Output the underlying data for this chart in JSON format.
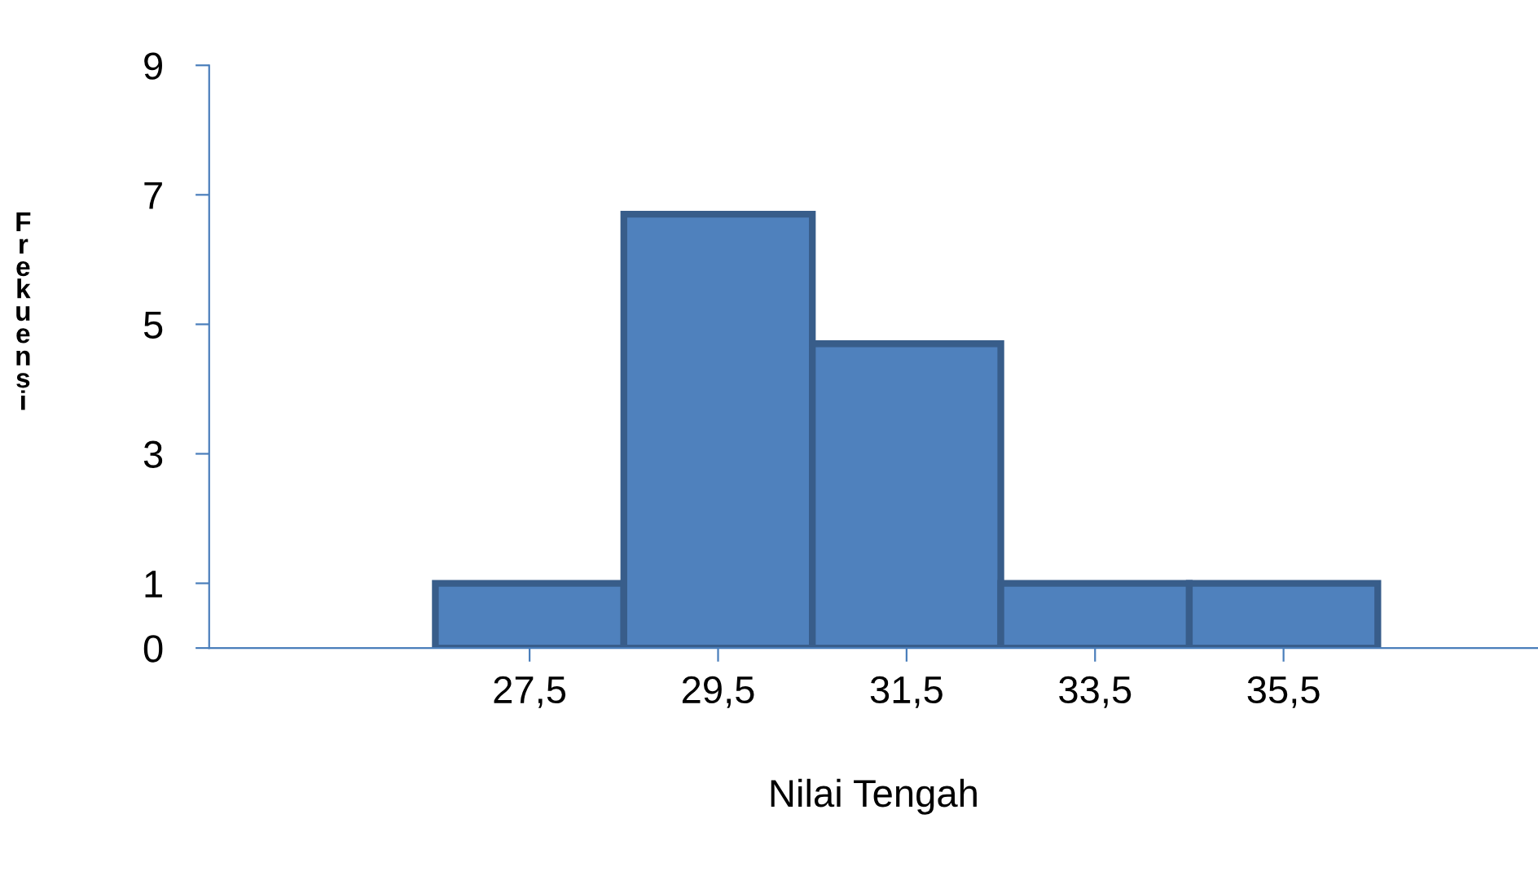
{
  "chart_data": {
    "type": "histogram",
    "xlabel": "Nilai Tengah",
    "ylabel": "Frekuensi",
    "bins": [
      26.5,
      28.5,
      30.5,
      32.5,
      34.5,
      36.5
    ],
    "values": [
      1,
      6.7,
      4.7,
      1,
      1
    ],
    "color": "#4f81bd",
    "xlim": [
      24.1,
      38.2
    ],
    "xticks": [
      {
        "value": 27.5,
        "label": "27,5"
      },
      {
        "value": 29.5,
        "label": "29,5"
      },
      {
        "value": 31.5,
        "label": "31,5"
      },
      {
        "value": 33.5,
        "label": "33,5"
      },
      {
        "value": 35.5,
        "label": "35,5"
      }
    ],
    "ylim": [
      0,
      9
    ],
    "yticks": [
      0,
      1,
      3,
      5,
      7,
      9
    ],
    "grid": false,
    "legend": false
  }
}
